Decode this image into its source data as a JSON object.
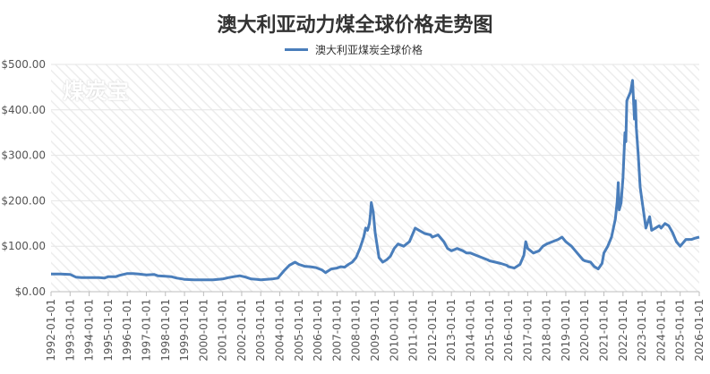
{
  "chart_data": {
    "type": "line",
    "title": "澳大利亚动力煤全球价格走势图",
    "watermark": "煤炭宝",
    "ylim": [
      0,
      500
    ],
    "yticks": [
      "$0.00",
      "$100.00",
      "$200.00",
      "$300.00",
      "$400.00",
      "$500.00"
    ],
    "ytick_values": [
      0,
      100,
      200,
      300,
      400,
      500
    ],
    "xticks": [
      "1992-01-01",
      "1993-01-01",
      "1994-01-01",
      "1995-01-01",
      "1996-01-01",
      "1997-01-01",
      "1998-01-01",
      "1999-01-01",
      "2000-01-01",
      "2001-01-01",
      "2002-01-01",
      "2003-01-01",
      "2004-01-01",
      "2005-01-01",
      "2006-01-01",
      "2007-01-01",
      "2008-01-01",
      "2009-01-01",
      "2010-01-01",
      "2011-01-01",
      "2012-01-01",
      "2013-01-01",
      "2014-01-01",
      "2015-01-01",
      "2016-01-01",
      "2017-01-01",
      "2018-01-01",
      "2019-01-01",
      "2020-01-01",
      "2021-01-01",
      "2022-01-01",
      "2023-01-01",
      "2024-01-01",
      "2025-01-01",
      "2026-01-01"
    ],
    "xlim": [
      1992.0,
      2026.0
    ],
    "grid": "horizontal",
    "legend_position": "top-center",
    "series": [
      {
        "name": "澳大利亚煤炭全球价格",
        "color": "#4a7ebb",
        "points": [
          [
            1992.0,
            39
          ],
          [
            1992.5,
            39
          ],
          [
            1993.0,
            38
          ],
          [
            1993.3,
            32
          ],
          [
            1993.6,
            31
          ],
          [
            1994.0,
            31
          ],
          [
            1994.5,
            31
          ],
          [
            1994.8,
            30
          ],
          [
            1995.0,
            33
          ],
          [
            1995.4,
            33
          ],
          [
            1995.6,
            36
          ],
          [
            1996.0,
            40
          ],
          [
            1996.3,
            40
          ],
          [
            1996.6,
            39
          ],
          [
            1997.0,
            37
          ],
          [
            1997.4,
            38
          ],
          [
            1997.6,
            35
          ],
          [
            1998.0,
            34
          ],
          [
            1998.3,
            33
          ],
          [
            1998.6,
            30
          ],
          [
            1998.9,
            28
          ],
          [
            1999.0,
            27
          ],
          [
            1999.5,
            26
          ],
          [
            2000.0,
            26
          ],
          [
            2000.5,
            26
          ],
          [
            2001.0,
            28
          ],
          [
            2001.3,
            31
          ],
          [
            2001.6,
            33
          ],
          [
            2001.9,
            35
          ],
          [
            2002.2,
            32
          ],
          [
            2002.5,
            28
          ],
          [
            2002.8,
            27
          ],
          [
            2003.0,
            26
          ],
          [
            2003.3,
            27
          ],
          [
            2003.6,
            28
          ],
          [
            2003.9,
            30
          ],
          [
            2004.0,
            35
          ],
          [
            2004.2,
            45
          ],
          [
            2004.5,
            58
          ],
          [
            2004.8,
            65
          ],
          [
            2005.0,
            60
          ],
          [
            2005.3,
            56
          ],
          [
            2005.6,
            55
          ],
          [
            2005.9,
            53
          ],
          [
            2006.2,
            48
          ],
          [
            2006.4,
            42
          ],
          [
            2006.7,
            50
          ],
          [
            2007.0,
            52
          ],
          [
            2007.2,
            55
          ],
          [
            2007.4,
            54
          ],
          [
            2007.6,
            60
          ],
          [
            2007.8,
            65
          ],
          [
            2008.0,
            75
          ],
          [
            2008.2,
            95
          ],
          [
            2008.4,
            120
          ],
          [
            2008.5,
            140
          ],
          [
            2008.6,
            135
          ],
          [
            2008.7,
            150
          ],
          [
            2008.75,
            170
          ],
          [
            2008.8,
            196
          ],
          [
            2008.9,
            175
          ],
          [
            2009.0,
            130
          ],
          [
            2009.2,
            75
          ],
          [
            2009.4,
            65
          ],
          [
            2009.6,
            70
          ],
          [
            2009.8,
            78
          ],
          [
            2010.0,
            95
          ],
          [
            2010.2,
            105
          ],
          [
            2010.5,
            100
          ],
          [
            2010.8,
            110
          ],
          [
            2011.0,
            130
          ],
          [
            2011.1,
            140
          ],
          [
            2011.3,
            135
          ],
          [
            2011.6,
            128
          ],
          [
            2011.9,
            125
          ],
          [
            2012.0,
            120
          ],
          [
            2012.3,
            125
          ],
          [
            2012.6,
            110
          ],
          [
            2012.8,
            95
          ],
          [
            2013.0,
            90
          ],
          [
            2013.3,
            95
          ],
          [
            2013.6,
            90
          ],
          [
            2013.8,
            85
          ],
          [
            2014.0,
            85
          ],
          [
            2014.3,
            80
          ],
          [
            2014.6,
            75
          ],
          [
            2014.9,
            70
          ],
          [
            2015.0,
            68
          ],
          [
            2015.3,
            65
          ],
          [
            2015.6,
            62
          ],
          [
            2015.9,
            58
          ],
          [
            2016.0,
            55
          ],
          [
            2016.3,
            52
          ],
          [
            2016.6,
            60
          ],
          [
            2016.8,
            80
          ],
          [
            2016.9,
            110
          ],
          [
            2017.0,
            95
          ],
          [
            2017.3,
            85
          ],
          [
            2017.6,
            90
          ],
          [
            2017.8,
            100
          ],
          [
            2018.0,
            105
          ],
          [
            2018.3,
            110
          ],
          [
            2018.6,
            115
          ],
          [
            2018.8,
            120
          ],
          [
            2019.0,
            110
          ],
          [
            2019.3,
            100
          ],
          [
            2019.6,
            85
          ],
          [
            2019.9,
            70
          ],
          [
            2020.0,
            68
          ],
          [
            2020.3,
            65
          ],
          [
            2020.5,
            55
          ],
          [
            2020.7,
            50
          ],
          [
            2020.9,
            62
          ],
          [
            2021.0,
            85
          ],
          [
            2021.2,
            100
          ],
          [
            2021.4,
            120
          ],
          [
            2021.6,
            160
          ],
          [
            2021.7,
            200
          ],
          [
            2021.75,
            240
          ],
          [
            2021.8,
            180
          ],
          [
            2021.9,
            195
          ],
          [
            2022.0,
            250
          ],
          [
            2022.1,
            350
          ],
          [
            2022.15,
            330
          ],
          [
            2022.2,
            420
          ],
          [
            2022.4,
            440
          ],
          [
            2022.5,
            465
          ],
          [
            2022.6,
            380
          ],
          [
            2022.65,
            420
          ],
          [
            2022.7,
            360
          ],
          [
            2022.8,
            300
          ],
          [
            2022.9,
            230
          ],
          [
            2023.0,
            200
          ],
          [
            2023.2,
            140
          ],
          [
            2023.4,
            165
          ],
          [
            2023.5,
            135
          ],
          [
            2023.7,
            140
          ],
          [
            2023.9,
            145
          ],
          [
            2024.0,
            140
          ],
          [
            2024.2,
            150
          ],
          [
            2024.4,
            145
          ],
          [
            2024.6,
            130
          ],
          [
            2024.8,
            110
          ],
          [
            2025.0,
            100
          ],
          [
            2025.3,
            115
          ],
          [
            2025.6,
            115
          ],
          [
            2025.8,
            118
          ],
          [
            2026.0,
            120
          ]
        ]
      }
    ]
  }
}
